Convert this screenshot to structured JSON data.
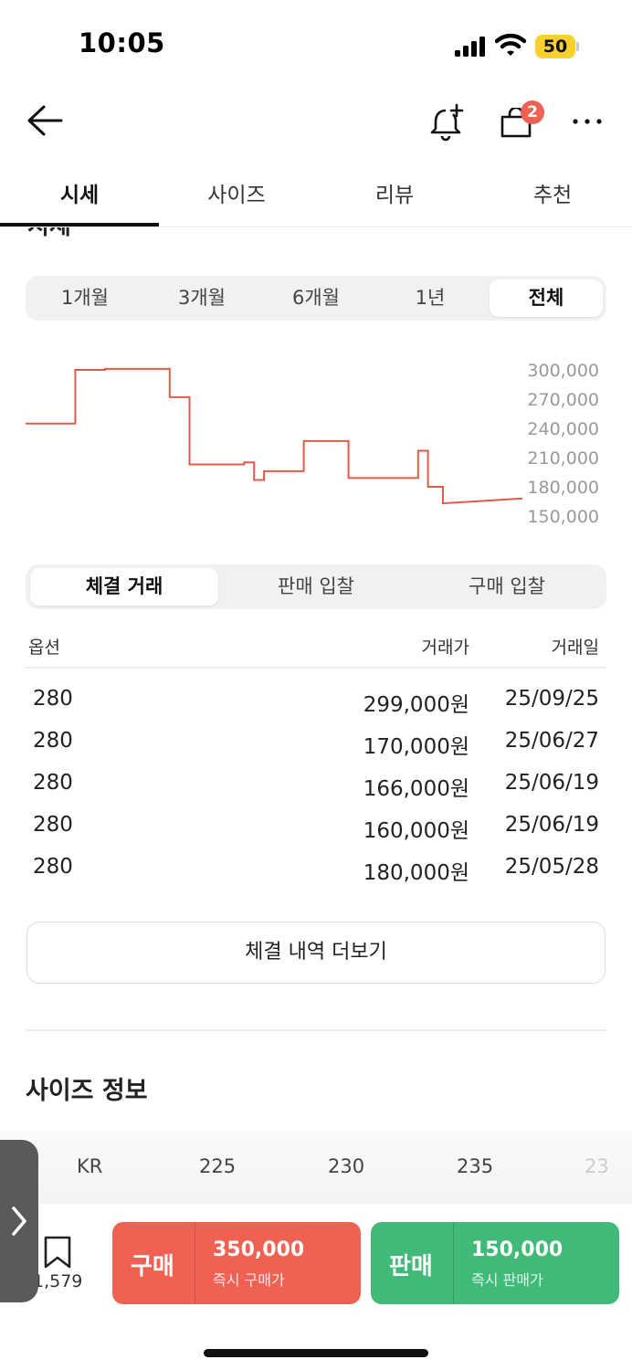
{
  "status_bar": {
    "time": "10:05",
    "battery": "50"
  },
  "header": {
    "cart_badge": "2"
  },
  "tabs": [
    {
      "label": "시세",
      "active": true
    },
    {
      "label": "사이즈"
    },
    {
      "label": "리뷰"
    },
    {
      "label": "추천"
    }
  ],
  "section_title": "시세",
  "period_filter": {
    "options": [
      "1개월",
      "3개월",
      "6개월",
      "1년",
      "전체"
    ],
    "selected": "전체"
  },
  "chart_data": {
    "type": "line",
    "color": "#e05a4b",
    "y_ticks": [
      "300,000",
      "270,000",
      "240,000",
      "210,000",
      "180,000",
      "150,000"
    ],
    "ylim": [
      150000,
      300000
    ],
    "series": [
      {
        "values": [
          [
            0,
            245000
          ],
          [
            10,
            245000
          ],
          [
            10,
            300000
          ],
          [
            16,
            300000
          ],
          [
            16,
            301000
          ],
          [
            29,
            301000
          ],
          [
            29,
            272000
          ],
          [
            33,
            272000
          ],
          [
            33,
            203000
          ],
          [
            44,
            203000
          ],
          [
            44,
            205000
          ],
          [
            46,
            205000
          ],
          [
            46,
            187000
          ],
          [
            48,
            187000
          ],
          [
            48,
            196000
          ],
          [
            56,
            196000
          ],
          [
            56,
            227000
          ],
          [
            65,
            227000
          ],
          [
            65,
            189000
          ],
          [
            79,
            189000
          ],
          [
            79,
            217000
          ],
          [
            81,
            217000
          ],
          [
            81,
            180000
          ],
          [
            84,
            180000
          ],
          [
            84,
            163000
          ],
          [
            100,
            168000
          ]
        ]
      }
    ]
  },
  "trade_filter": {
    "options": [
      "체결 거래",
      "판매 입찰",
      "구매 입찰"
    ],
    "selected": "체결 거래"
  },
  "trades": {
    "headers": {
      "option": "옵션",
      "price": "거래가",
      "date": "거래일"
    },
    "rows": [
      {
        "option": "280",
        "price": "299,000원",
        "date": "25/09/25"
      },
      {
        "option": "280",
        "price": "170,000원",
        "date": "25/06/27"
      },
      {
        "option": "280",
        "price": "166,000원",
        "date": "25/06/19"
      },
      {
        "option": "280",
        "price": "160,000원",
        "date": "25/06/19"
      },
      {
        "option": "280",
        "price": "180,000원",
        "date": "25/05/28"
      }
    ]
  },
  "more_button": "체결 내역 더보기",
  "size_info": {
    "title": "사이즈 정보",
    "row": [
      "KR",
      "225",
      "230",
      "235",
      "23"
    ]
  },
  "bottom_bar": {
    "wishlist_count": "1,579",
    "buy": {
      "label": "구매",
      "price": "350,000",
      "sub": "즉시 구매가"
    },
    "sell": {
      "label": "판매",
      "price": "150,000",
      "sub": "즉시 판매가"
    }
  }
}
